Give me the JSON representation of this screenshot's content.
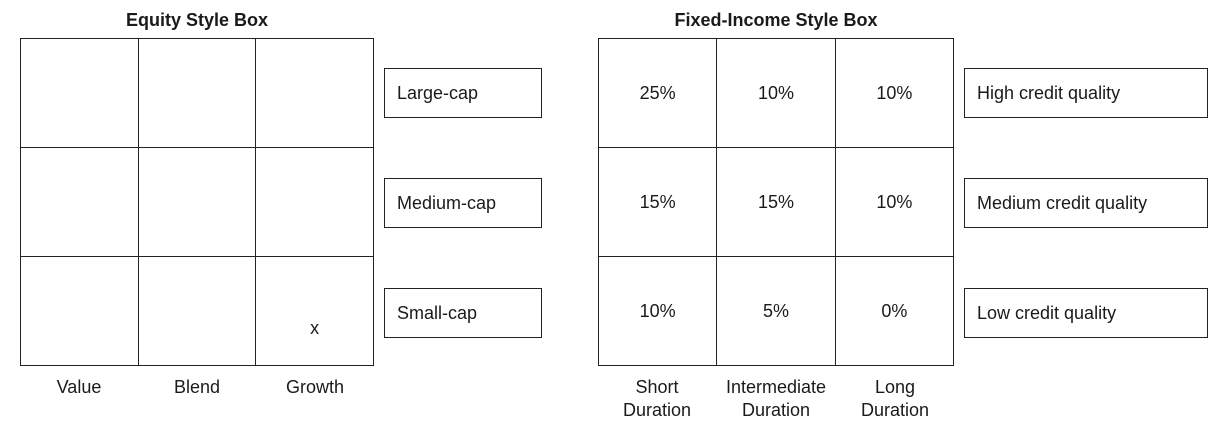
{
  "equity": {
    "title": "Equity Style Box",
    "cells": [
      "",
      "",
      "",
      "",
      "",
      "",
      "",
      "",
      "x"
    ],
    "rows": [
      "Large-cap",
      "Medium-cap",
      "Small-cap"
    ],
    "columns": [
      "Value",
      "Blend",
      "Growth"
    ]
  },
  "fixed_income": {
    "title": "Fixed-Income Style Box",
    "cells": [
      "25%",
      "10%",
      "10%",
      "15%",
      "15%",
      "10%",
      "10%",
      "5%",
      "0%"
    ],
    "rows": [
      "High credit quality",
      "Medium credit quality",
      "Low credit quality"
    ],
    "columns": [
      {
        "line1": "Short",
        "line2": "Duration"
      },
      {
        "line1": "Intermediate",
        "line2": "Duration"
      },
      {
        "line1": "Long",
        "line2": "Duration"
      }
    ]
  }
}
